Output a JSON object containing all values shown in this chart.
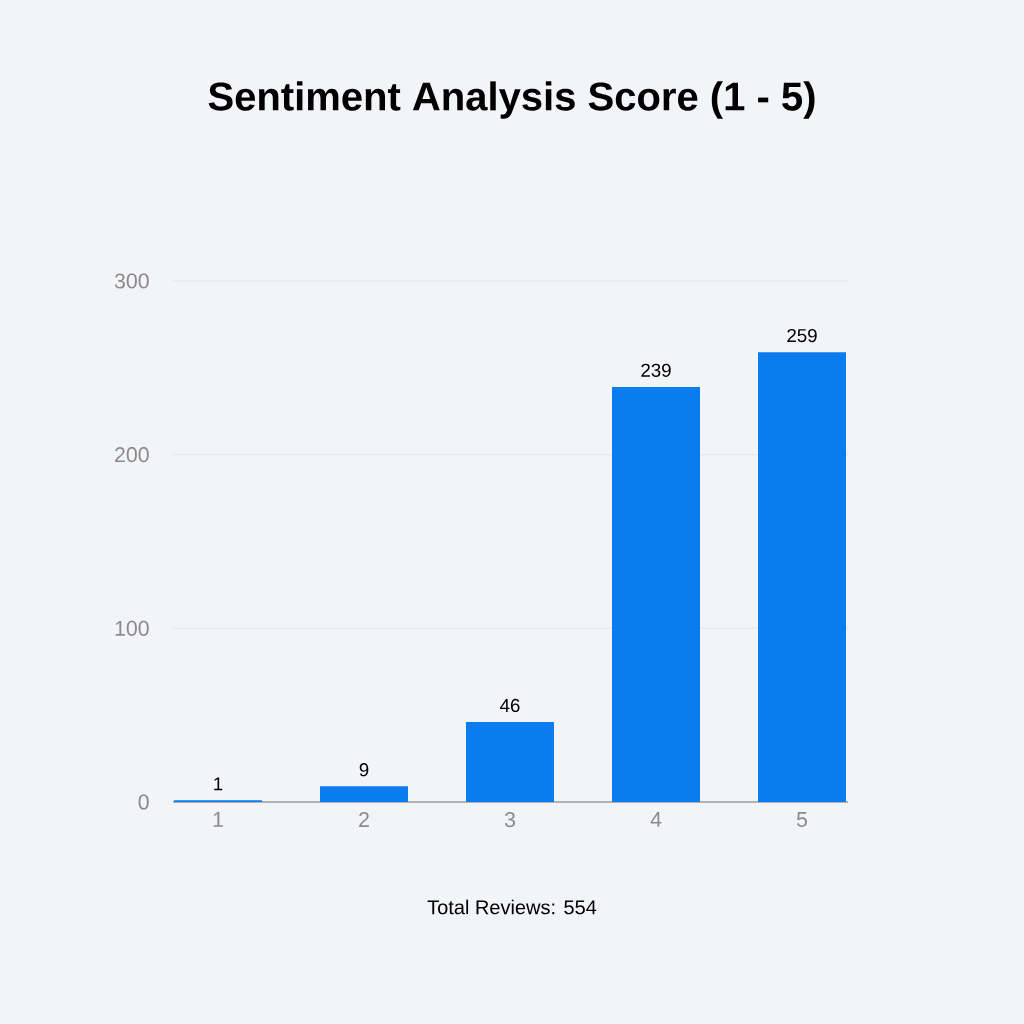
{
  "chart_data": {
    "type": "bar",
    "title": "Sentiment Analysis Score (1 - 5)",
    "categories": [
      "1",
      "2",
      "3",
      "4",
      "5"
    ],
    "values": [
      1,
      9,
      46,
      239,
      259
    ],
    "color": "#0a7cf0",
    "ylim": [
      0,
      300
    ],
    "yticks": [
      0,
      100,
      200,
      300
    ],
    "grid": "y",
    "data_labels": true,
    "annotations": [
      "Total Reviews: 554"
    ]
  }
}
